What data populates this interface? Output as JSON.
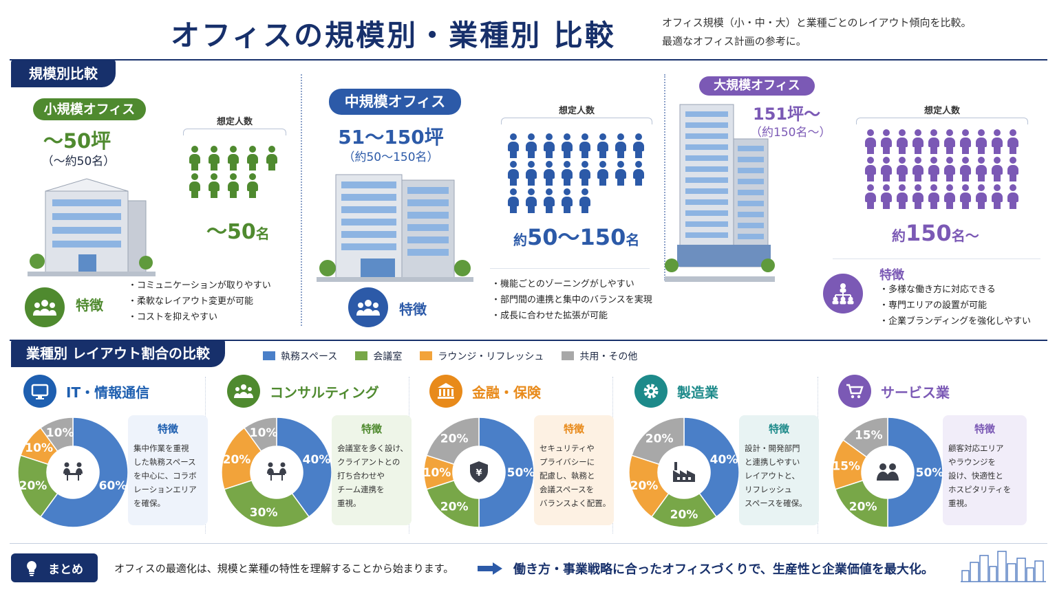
{
  "header": {
    "title": "オフィスの規模別・業種別 比較",
    "subtitle_line1": "オフィス規模（小・中・大）と業種ごとのレイアウト傾向を比較。",
    "subtitle_line2": "最適なオフィス計画の参考に。"
  },
  "scale_section": {
    "tab": "規模別比較",
    "people_caption": "想定人数",
    "feature_label": "特徴",
    "small": {
      "name": "小規模オフィス",
      "tsubo": "～50坪",
      "people_sub": "（～約50名）",
      "count_main": "～50",
      "count_unit": "名",
      "icon_count": 9,
      "features": [
        "・コミュニケーションが取りやすい",
        "・柔軟なレイアウト変更が可能",
        "・コストを抑えやすい"
      ],
      "color": "#4f8a2f"
    },
    "medium": {
      "name": "中規模オフィス",
      "tsubo": "51～150坪",
      "people_sub": "（約50～150名）",
      "count_prefix": "約",
      "count_main": "50～150",
      "count_unit": "名",
      "icon_count": 21,
      "features": [
        "・機能ごとのゾーニングがしやすい",
        "・部門間の連携と集中のバランスを実現",
        "・成長に合わせた拡張が可能"
      ],
      "color": "#2c5aa8"
    },
    "large": {
      "name": "大規模オフィス",
      "tsubo": "151坪～",
      "people_sub": "（約150名～）",
      "count_prefix": "約",
      "count_main": "150",
      "count_unit": "名～",
      "icon_count": 30,
      "features": [
        "・多様な働き方に対応できる",
        "・専門エリアの設置が可能",
        "・企業ブランディングを強化しやすい"
      ],
      "color": "#7b59b5"
    }
  },
  "industry_section": {
    "tab": "業種別 レイアウト割合の比較",
    "feature_label": "特徴",
    "legend": [
      {
        "label": "執務スペース",
        "color": "#4a7fc8"
      },
      {
        "label": "会議室",
        "color": "#78a748"
      },
      {
        "label": "ラウンジ・リフレッシュ",
        "color": "#f2a33a"
      },
      {
        "label": "共用・その他",
        "color": "#a8a8a8"
      }
    ]
  },
  "chart_data": [
    {
      "type": "pie",
      "title": "IT・情報通信",
      "categories": [
        "執務スペース",
        "会議室",
        "ラウンジ・リフレッシュ",
        "共用・その他"
      ],
      "values": [
        60,
        20,
        10,
        10
      ],
      "unit": "%"
    },
    {
      "type": "pie",
      "title": "コンサルティング",
      "categories": [
        "執務スペース",
        "会議室",
        "ラウンジ・リフレッシュ",
        "共用・その他"
      ],
      "values": [
        40,
        30,
        20,
        10
      ],
      "unit": "%"
    },
    {
      "type": "pie",
      "title": "金融・保険",
      "categories": [
        "執務スペース",
        "会議室",
        "ラウンジ・リフレッシュ",
        "共用・その他"
      ],
      "values": [
        50,
        20,
        10,
        20
      ],
      "unit": "%"
    },
    {
      "type": "pie",
      "title": "製造業",
      "categories": [
        "執務スペース",
        "会議室",
        "ラウンジ・リフレッシュ",
        "共用・その他"
      ],
      "values": [
        40,
        20,
        20,
        20
      ],
      "unit": "%"
    },
    {
      "type": "pie",
      "title": "サービス業",
      "categories": [
        "執務スペース",
        "会議室",
        "ラウンジ・リフレッシュ",
        "共用・その他"
      ],
      "values": [
        50,
        20,
        15,
        15
      ],
      "unit": "%"
    }
  ],
  "industries": [
    {
      "name": "IT・情報通信",
      "icon": "monitor-icon",
      "color": "#1e5fb0",
      "center_icon": "meeting-icon",
      "card_bg": "#eef3fb",
      "card_title_color": "#1e5fb0",
      "text": [
        "集中作業を重視",
        "した執務スペース",
        "を中心に、コラボ",
        "レーションエリア",
        "を確保。"
      ]
    },
    {
      "name": "コンサルティング",
      "icon": "group-icon",
      "color": "#4f8a2f",
      "center_icon": "meeting-icon",
      "card_bg": "#eef5e8",
      "card_title_color": "#4f8a2f",
      "text": [
        "会議室を多く設け、",
        "クライアントとの",
        "打ち合わせや",
        "チーム連携を",
        "重視。"
      ]
    },
    {
      "name": "金融・保険",
      "icon": "bank-icon",
      "color": "#e88a1a",
      "center_icon": "shield-yen-icon",
      "card_bg": "#fdf1e3",
      "card_title_color": "#e88a1a",
      "text": [
        "セキュリティや",
        "プライバシーに",
        "配慮し、執務と",
        "会議スペースを",
        "バランスよく配置。"
      ]
    },
    {
      "name": "製造業",
      "icon": "gear-icon",
      "color": "#1d8a8a",
      "center_icon": "factory-icon",
      "card_bg": "#e8f3f3",
      "card_title_color": "#1d8a8a",
      "text": [
        "設計・開発部門",
        "と連携しやすい",
        "レイアウトと、",
        "リフレッシュ",
        "スペースを確保。"
      ]
    },
    {
      "name": "サービス業",
      "icon": "cart-icon",
      "color": "#7b59b5",
      "center_icon": "people-icon",
      "card_bg": "#f1edf9",
      "card_title_color": "#7b59b5",
      "text": [
        "顧客対応エリア",
        "やラウンジを",
        "設け、快適性と",
        "ホスピタリティを",
        "重視。"
      ]
    }
  ],
  "summary": {
    "tab": "まとめ",
    "text": "オフィスの最適化は、規模と業種の特性を理解することから始まります。",
    "conclusion": "働き方・事業戦略に合ったオフィスづくりで、生産性と企業価値を最大化。"
  }
}
